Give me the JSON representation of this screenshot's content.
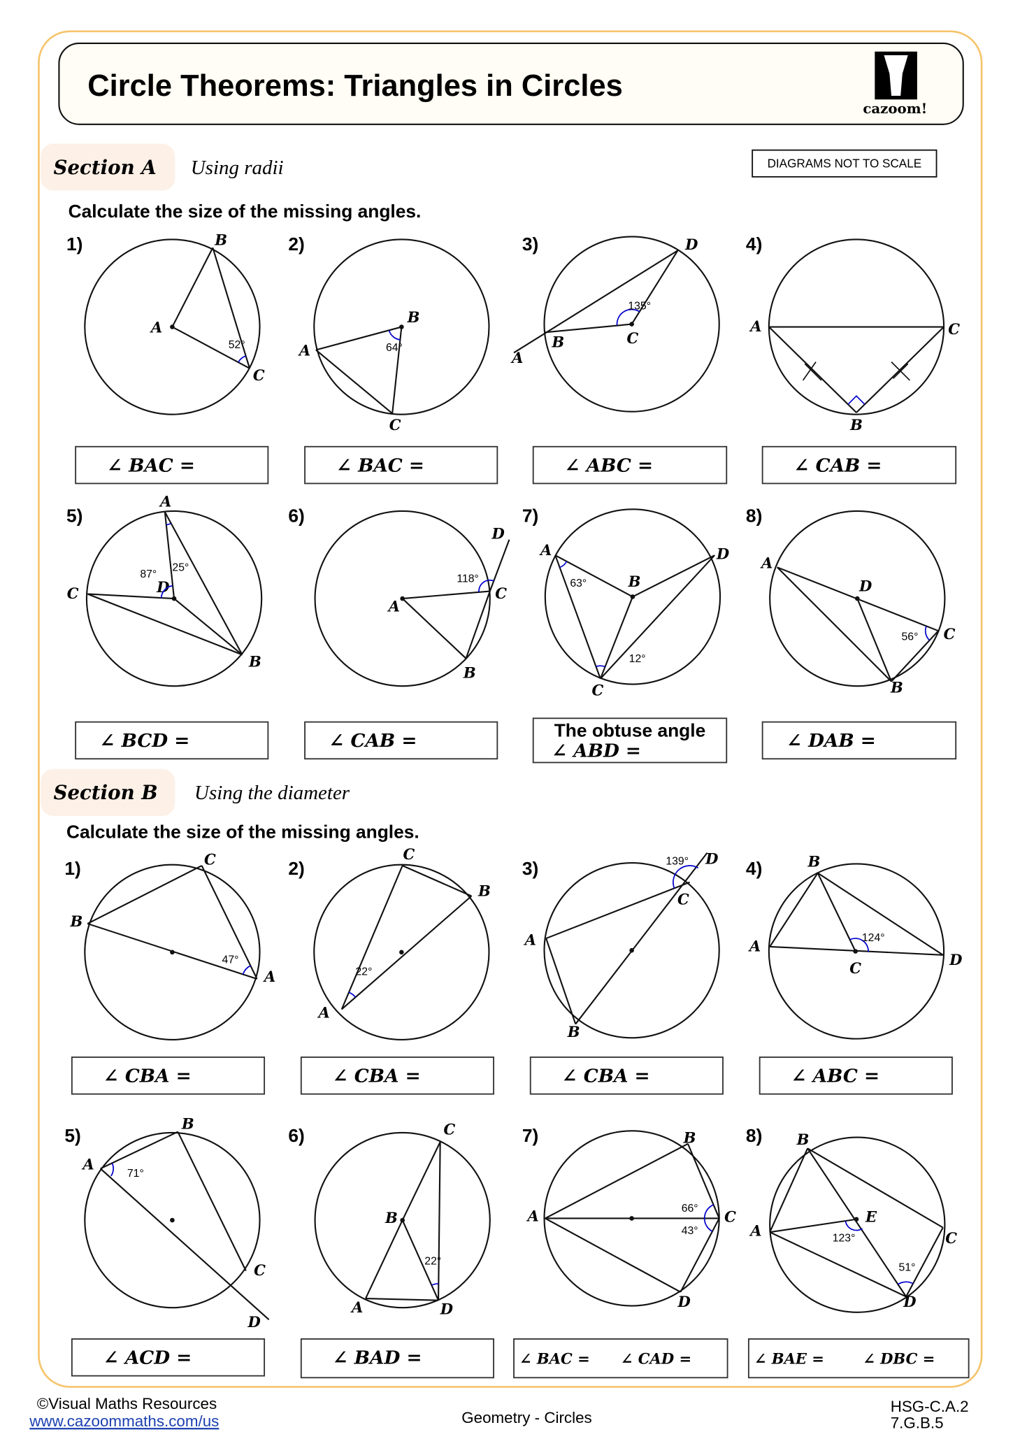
{
  "header": {
    "title": "Circle Theorems: Triangles in Circles",
    "logo_text": "cazoom!"
  },
  "note": "DIAGRAMS NOT TO SCALE",
  "colors": {
    "border": "#f5c46b",
    "section_tab": "#fdf0e6",
    "title_bg": "#fffdf5",
    "angle_arc": "#0000cc"
  },
  "sectionA": {
    "label": "Section A",
    "subtitle": "Using radii",
    "instruction": "Calculate the size of the missing angles.",
    "problems": [
      {
        "num": "1)",
        "points": {
          "A": "A",
          "B": "B",
          "C": "C"
        },
        "angles": [
          "52°"
        ],
        "answer": [
          "∠ BAC ="
        ]
      },
      {
        "num": "2)",
        "points": {
          "A": "A",
          "B": "B",
          "C": "C"
        },
        "angles": [
          "64°"
        ],
        "answer": [
          "∠ BAC ="
        ]
      },
      {
        "num": "3)",
        "points": {
          "A": "A",
          "B": "B",
          "C": "C",
          "D": "D"
        },
        "angles": [
          "135°"
        ],
        "answer": [
          "∠ ABC ="
        ]
      },
      {
        "num": "4)",
        "points": {
          "A": "A",
          "B": "B",
          "C": "C"
        },
        "angles": [],
        "answer": [
          "∠ CAB ="
        ]
      },
      {
        "num": "5)",
        "points": {
          "A": "A",
          "B": "B",
          "C": "C",
          "D": "D"
        },
        "angles": [
          "87°",
          "25°"
        ],
        "answer": [
          "∠ BCD ="
        ]
      },
      {
        "num": "6)",
        "points": {
          "A": "A",
          "B": "B",
          "C": "C",
          "D": "D"
        },
        "angles": [
          "118°"
        ],
        "answer": [
          "∠ CAB ="
        ]
      },
      {
        "num": "7)",
        "points": {
          "A": "A",
          "B": "B",
          "C": "C",
          "D": "D"
        },
        "angles": [
          "63°",
          "12°"
        ],
        "answer": [
          "The obtuse angle",
          "∠ ABD ="
        ]
      },
      {
        "num": "8)",
        "points": {
          "A": "A",
          "B": "B",
          "C": "C",
          "D": "D"
        },
        "angles": [
          "56°"
        ],
        "answer": [
          "∠ DAB ="
        ]
      }
    ]
  },
  "sectionB": {
    "label": "Section B",
    "subtitle": "Using the diameter",
    "instruction": "Calculate the size of the missing angles.",
    "problems": [
      {
        "num": "1)",
        "points": {
          "A": "A",
          "B": "B",
          "C": "C"
        },
        "angles": [
          "47°"
        ],
        "answer": [
          "∠ CBA ="
        ]
      },
      {
        "num": "2)",
        "points": {
          "A": "A",
          "B": "B",
          "C": "C"
        },
        "angles": [
          "22°"
        ],
        "answer": [
          "∠ CBA ="
        ]
      },
      {
        "num": "3)",
        "points": {
          "A": "A",
          "B": "B",
          "C": "C",
          "D": "D"
        },
        "angles": [
          "139°"
        ],
        "answer": [
          "∠ CBA ="
        ]
      },
      {
        "num": "4)",
        "points": {
          "A": "A",
          "B": "B",
          "C": "C",
          "D": "D"
        },
        "angles": [
          "124°"
        ],
        "answer": [
          "∠ ABC ="
        ]
      },
      {
        "num": "5)",
        "points": {
          "A": "A",
          "B": "B",
          "C": "C",
          "D": "D"
        },
        "angles": [
          "71°"
        ],
        "answer": [
          "∠ ACD ="
        ]
      },
      {
        "num": "6)",
        "points": {
          "A": "A",
          "B": "B",
          "C": "C",
          "D": "D"
        },
        "angles": [
          "22°"
        ],
        "answer": [
          "∠ BAD ="
        ]
      },
      {
        "num": "7)",
        "points": {
          "A": "A",
          "B": "B",
          "C": "C",
          "D": "D"
        },
        "angles": [
          "66°",
          "43°"
        ],
        "answer": [
          "∠ BAC =",
          "∠ CAD ="
        ]
      },
      {
        "num": "8)",
        "points": {
          "A": "A",
          "B": "B",
          "C": "C",
          "D": "D",
          "E": "E"
        },
        "angles": [
          "123°",
          "51°"
        ],
        "answer": [
          "∠ BAE =",
          "∠ DBC ="
        ]
      }
    ]
  },
  "footer": {
    "copyright": "©Visual Maths Resources",
    "link": "www.cazoommaths.com/us",
    "topic": "Geometry - Circles",
    "standards": [
      "HSG-C.A.2",
      "7.G.B.5"
    ]
  }
}
